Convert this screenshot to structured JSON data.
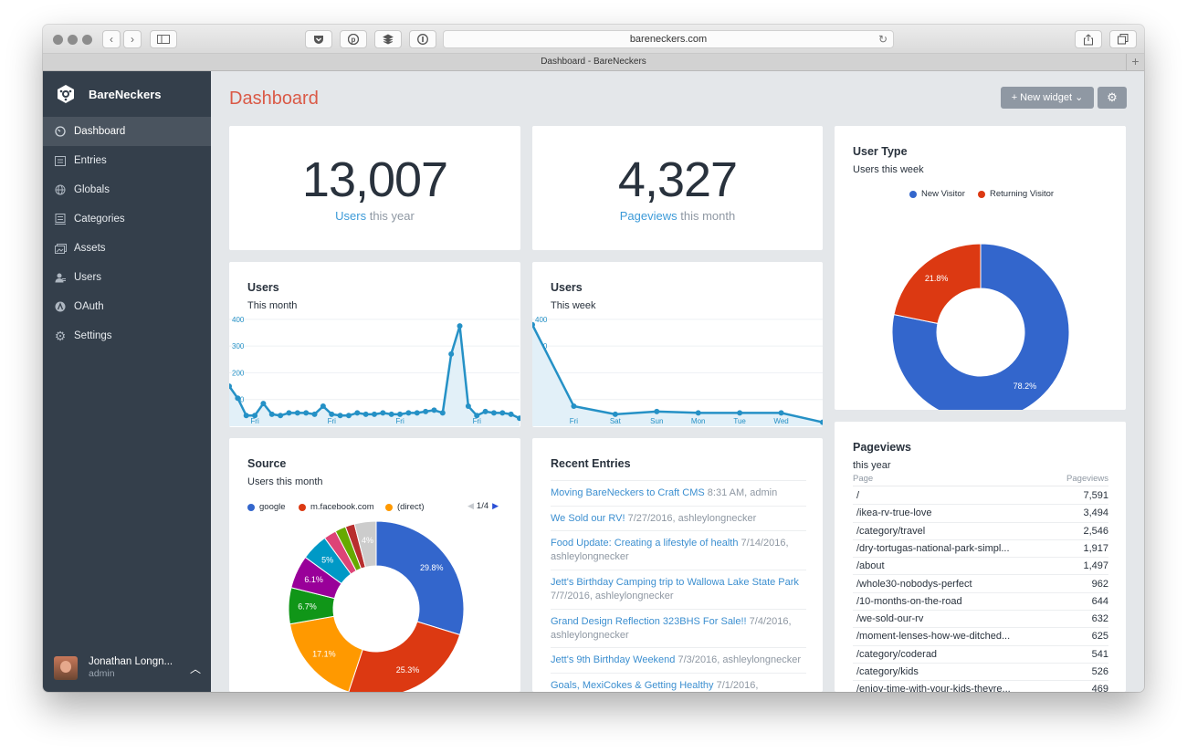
{
  "browser": {
    "url": "bareneckers.com",
    "tab_title": "Dashboard - BareNeckers"
  },
  "sidebar": {
    "brand": "BareNeckers",
    "items": [
      {
        "label": "Dashboard",
        "icon": "gauge-icon",
        "active": true
      },
      {
        "label": "Entries",
        "icon": "entries-icon"
      },
      {
        "label": "Globals",
        "icon": "globe-icon"
      },
      {
        "label": "Categories",
        "icon": "categories-icon"
      },
      {
        "label": "Assets",
        "icon": "assets-icon"
      },
      {
        "label": "Users",
        "icon": "users-icon"
      },
      {
        "label": "OAuth",
        "icon": "oauth-icon"
      },
      {
        "label": "Settings",
        "icon": "gear-icon"
      }
    ],
    "user": {
      "name": "Jonathan Longn...",
      "role": "admin"
    }
  },
  "header": {
    "title": "Dashboard",
    "new_widget": "+ New widget ⌄"
  },
  "widgets": {
    "users_year": {
      "value": "13,007",
      "link": "Users",
      "suffix": " this year"
    },
    "pageviews_month": {
      "value": "4,327",
      "link": "Pageviews",
      "suffix": " this month"
    },
    "users_month": {
      "title": "Users",
      "subtitle": "This month"
    },
    "users_week": {
      "title": "Users",
      "subtitle": "This week"
    },
    "user_type": {
      "title": "User Type",
      "subtitle": "Users this week"
    },
    "source": {
      "title": "Source",
      "subtitle": "Users this month",
      "pager": "1/4"
    },
    "recent": {
      "title": "Recent Entries",
      "entries": [
        {
          "title": "Moving BareNeckers to Craft CMS",
          "meta": " 8:31 AM, admin"
        },
        {
          "title": "We Sold our RV!",
          "meta": " 7/27/2016, ashleylongnecker"
        },
        {
          "title": "Food Update: Creating a lifestyle of health",
          "meta": " 7/14/2016, ashleylongnecker"
        },
        {
          "title": "Jett's Birthday Camping trip to Wallowa Lake State Park",
          "meta": " 7/7/2016, ashleylongnecker"
        },
        {
          "title": "Grand Design Reflection 323BHS For Sale!!",
          "meta": " 7/4/2016, ashleylongnecker"
        },
        {
          "title": "Jett's 9th Birthday Weekend",
          "meta": " 7/3/2016, ashleylongnecker"
        },
        {
          "title": "Goals, MexiCokes & Getting Healthy",
          "meta": " 7/1/2016,"
        }
      ]
    },
    "pageviews": {
      "title": "Pageviews",
      "subtitle": "this year",
      "col_page": "Page",
      "col_views": "Pageviews",
      "rows": [
        {
          "page": "/",
          "views": "7,591"
        },
        {
          "page": "/ikea-rv-true-love",
          "views": "3,494"
        },
        {
          "page": "/category/travel",
          "views": "2,546"
        },
        {
          "page": "/dry-tortugas-national-park-simpl...",
          "views": "1,917"
        },
        {
          "page": "/about",
          "views": "1,497"
        },
        {
          "page": "/whole30-nobodys-perfect",
          "views": "962"
        },
        {
          "page": "/10-months-on-the-road",
          "views": "644"
        },
        {
          "page": "/we-sold-our-rv",
          "views": "632"
        },
        {
          "page": "/moment-lenses-how-we-ditched...",
          "views": "625"
        },
        {
          "page": "/category/coderad",
          "views": "541"
        },
        {
          "page": "/category/kids",
          "views": "526"
        },
        {
          "page": "/enjoy-time-with-your-kids-theyre...",
          "views": "469"
        }
      ]
    }
  },
  "chart_data": [
    {
      "type": "area",
      "title": "Users",
      "subtitle": "This month",
      "ylim": [
        0,
        420
      ],
      "yticks": [
        "100",
        "200",
        "300",
        "400"
      ],
      "x_labels": [
        "Fri",
        "Fri",
        "Fri",
        "Fri"
      ],
      "values": [
        150,
        105,
        40,
        40,
        85,
        45,
        40,
        50,
        50,
        50,
        45,
        75,
        45,
        40,
        40,
        50,
        45,
        45,
        50,
        45,
        45,
        50,
        50,
        55,
        60,
        50,
        270,
        375,
        75,
        40,
        55,
        50,
        50,
        45,
        30
      ],
      "color": "#2591c6"
    },
    {
      "type": "area",
      "title": "Users",
      "subtitle": "This week",
      "ylim": [
        0,
        420
      ],
      "yticks": [
        "100",
        "200",
        "300",
        "400"
      ],
      "categories": [
        "",
        "Fri",
        "Sat",
        "Sun",
        "Mon",
        "Tue",
        "Wed",
        ""
      ],
      "values": [
        380,
        75,
        45,
        55,
        50,
        50,
        50,
        15
      ],
      "color": "#2591c6"
    },
    {
      "type": "pie",
      "title": "User Type",
      "subtitle": "Users this week",
      "slices": [
        {
          "label": "New Visitor",
          "value": 78.2,
          "color": "#3366cc",
          "text": "78.2%"
        },
        {
          "label": "Returning Visitor",
          "value": 21.8,
          "color": "#dc3912",
          "text": "21.8%"
        }
      ],
      "legend": "top"
    },
    {
      "type": "pie",
      "title": "Source",
      "subtitle": "Users this month",
      "slices": [
        {
          "label": "google",
          "value": 29.8,
          "color": "#3366cc",
          "text": "29.8%"
        },
        {
          "label": "m.facebook.com",
          "value": 25.3,
          "color": "#dc3912",
          "text": "25.3%"
        },
        {
          "label": "(direct)",
          "value": 17.1,
          "color": "#ff9900",
          "text": "17.1%"
        },
        {
          "label": "",
          "value": 6.7,
          "color": "#109618",
          "text": "6.7%"
        },
        {
          "label": "",
          "value": 6.1,
          "color": "#990099",
          "text": "6.1%"
        },
        {
          "label": "",
          "value": 5.0,
          "color": "#0099c6",
          "text": "5%"
        },
        {
          "label": "",
          "value": 2.3,
          "color": "#dd4477",
          "text": ""
        },
        {
          "label": "",
          "value": 2.0,
          "color": "#66aa00",
          "text": ""
        },
        {
          "label": "",
          "value": 1.7,
          "color": "#b82e2e",
          "text": ""
        },
        {
          "label": "",
          "value": 4.0,
          "color": "#cccccc",
          "text": "4%"
        }
      ],
      "legend": "top"
    }
  ]
}
